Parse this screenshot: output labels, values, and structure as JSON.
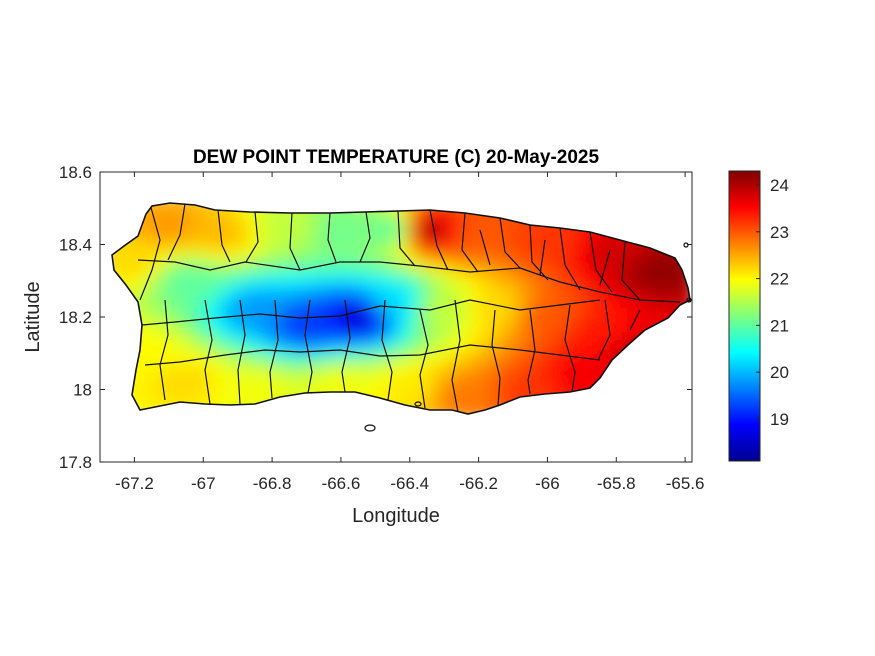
{
  "chart_data": {
    "type": "heatmap",
    "title": "DEW POINT TEMPERATURE (C) 20-May-2025",
    "xlabel": "Longitude",
    "ylabel": "Latitude",
    "xlim": [
      -67.3,
      -65.58
    ],
    "ylim": [
      17.8,
      18.6
    ],
    "x_ticks": [
      -67.2,
      -67,
      -66.8,
      -66.6,
      -66.4,
      -66.2,
      -66,
      -65.8,
      -65.6
    ],
    "x_tick_labels": [
      "-67.2",
      "-67",
      "-66.8",
      "-66.6",
      "-66.4",
      "-66.2",
      "-66",
      "-65.8",
      "-65.6"
    ],
    "y_ticks": [
      17.8,
      18,
      18.2,
      18.4,
      18.6
    ],
    "y_tick_labels": [
      "17.8",
      "18",
      "18.2",
      "18.4",
      "18.6"
    ],
    "colorbar": {
      "colormap": "jet",
      "range": [
        18.1,
        24.3
      ],
      "ticks": [
        19,
        20,
        21,
        22,
        23,
        24
      ],
      "tick_labels": [
        "19",
        "20",
        "21",
        "22",
        "23",
        "24"
      ]
    },
    "grid": false,
    "field_samples": [
      {
        "lon": -67.1,
        "lat": 18.45,
        "value": 22.6
      },
      {
        "lon": -66.95,
        "lat": 18.43,
        "value": 22.4
      },
      {
        "lon": -66.75,
        "lat": 18.45,
        "value": 21.6
      },
      {
        "lon": -66.6,
        "lat": 18.44,
        "value": 21.1
      },
      {
        "lon": -66.45,
        "lat": 18.44,
        "value": 21.0
      },
      {
        "lon": -66.35,
        "lat": 18.44,
        "value": 24.0
      },
      {
        "lon": -66.2,
        "lat": 18.43,
        "value": 23.0
      },
      {
        "lon": -66.0,
        "lat": 18.41,
        "value": 23.2
      },
      {
        "lon": -65.8,
        "lat": 18.38,
        "value": 23.8
      },
      {
        "lon": -65.68,
        "lat": 18.33,
        "value": 24.2
      },
      {
        "lon": -67.2,
        "lat": 18.35,
        "value": 22.2
      },
      {
        "lon": -67.05,
        "lat": 18.3,
        "value": 21.0
      },
      {
        "lon": -66.85,
        "lat": 18.22,
        "value": 19.8
      },
      {
        "lon": -66.7,
        "lat": 18.18,
        "value": 19.2
      },
      {
        "lon": -66.55,
        "lat": 18.2,
        "value": 18.6
      },
      {
        "lon": -66.45,
        "lat": 18.24,
        "value": 20.2
      },
      {
        "lon": -66.3,
        "lat": 18.22,
        "value": 21.6
      },
      {
        "lon": -66.15,
        "lat": 18.22,
        "value": 22.2
      },
      {
        "lon": -66.0,
        "lat": 18.2,
        "value": 23.0
      },
      {
        "lon": -65.85,
        "lat": 18.15,
        "value": 23.4
      },
      {
        "lon": -65.75,
        "lat": 18.1,
        "value": 23.9
      },
      {
        "lon": -67.18,
        "lat": 18.1,
        "value": 22.0
      },
      {
        "lon": -67.05,
        "lat": 18.02,
        "value": 22.2
      },
      {
        "lon": -66.85,
        "lat": 18.0,
        "value": 21.9
      },
      {
        "lon": -66.6,
        "lat": 18.01,
        "value": 21.9
      },
      {
        "lon": -66.4,
        "lat": 18.0,
        "value": 22.1
      },
      {
        "lon": -66.25,
        "lat": 17.98,
        "value": 22.8
      },
      {
        "lon": -66.05,
        "lat": 17.99,
        "value": 23.2
      },
      {
        "lon": -65.9,
        "lat": 18.03,
        "value": 23.6
      }
    ]
  }
}
